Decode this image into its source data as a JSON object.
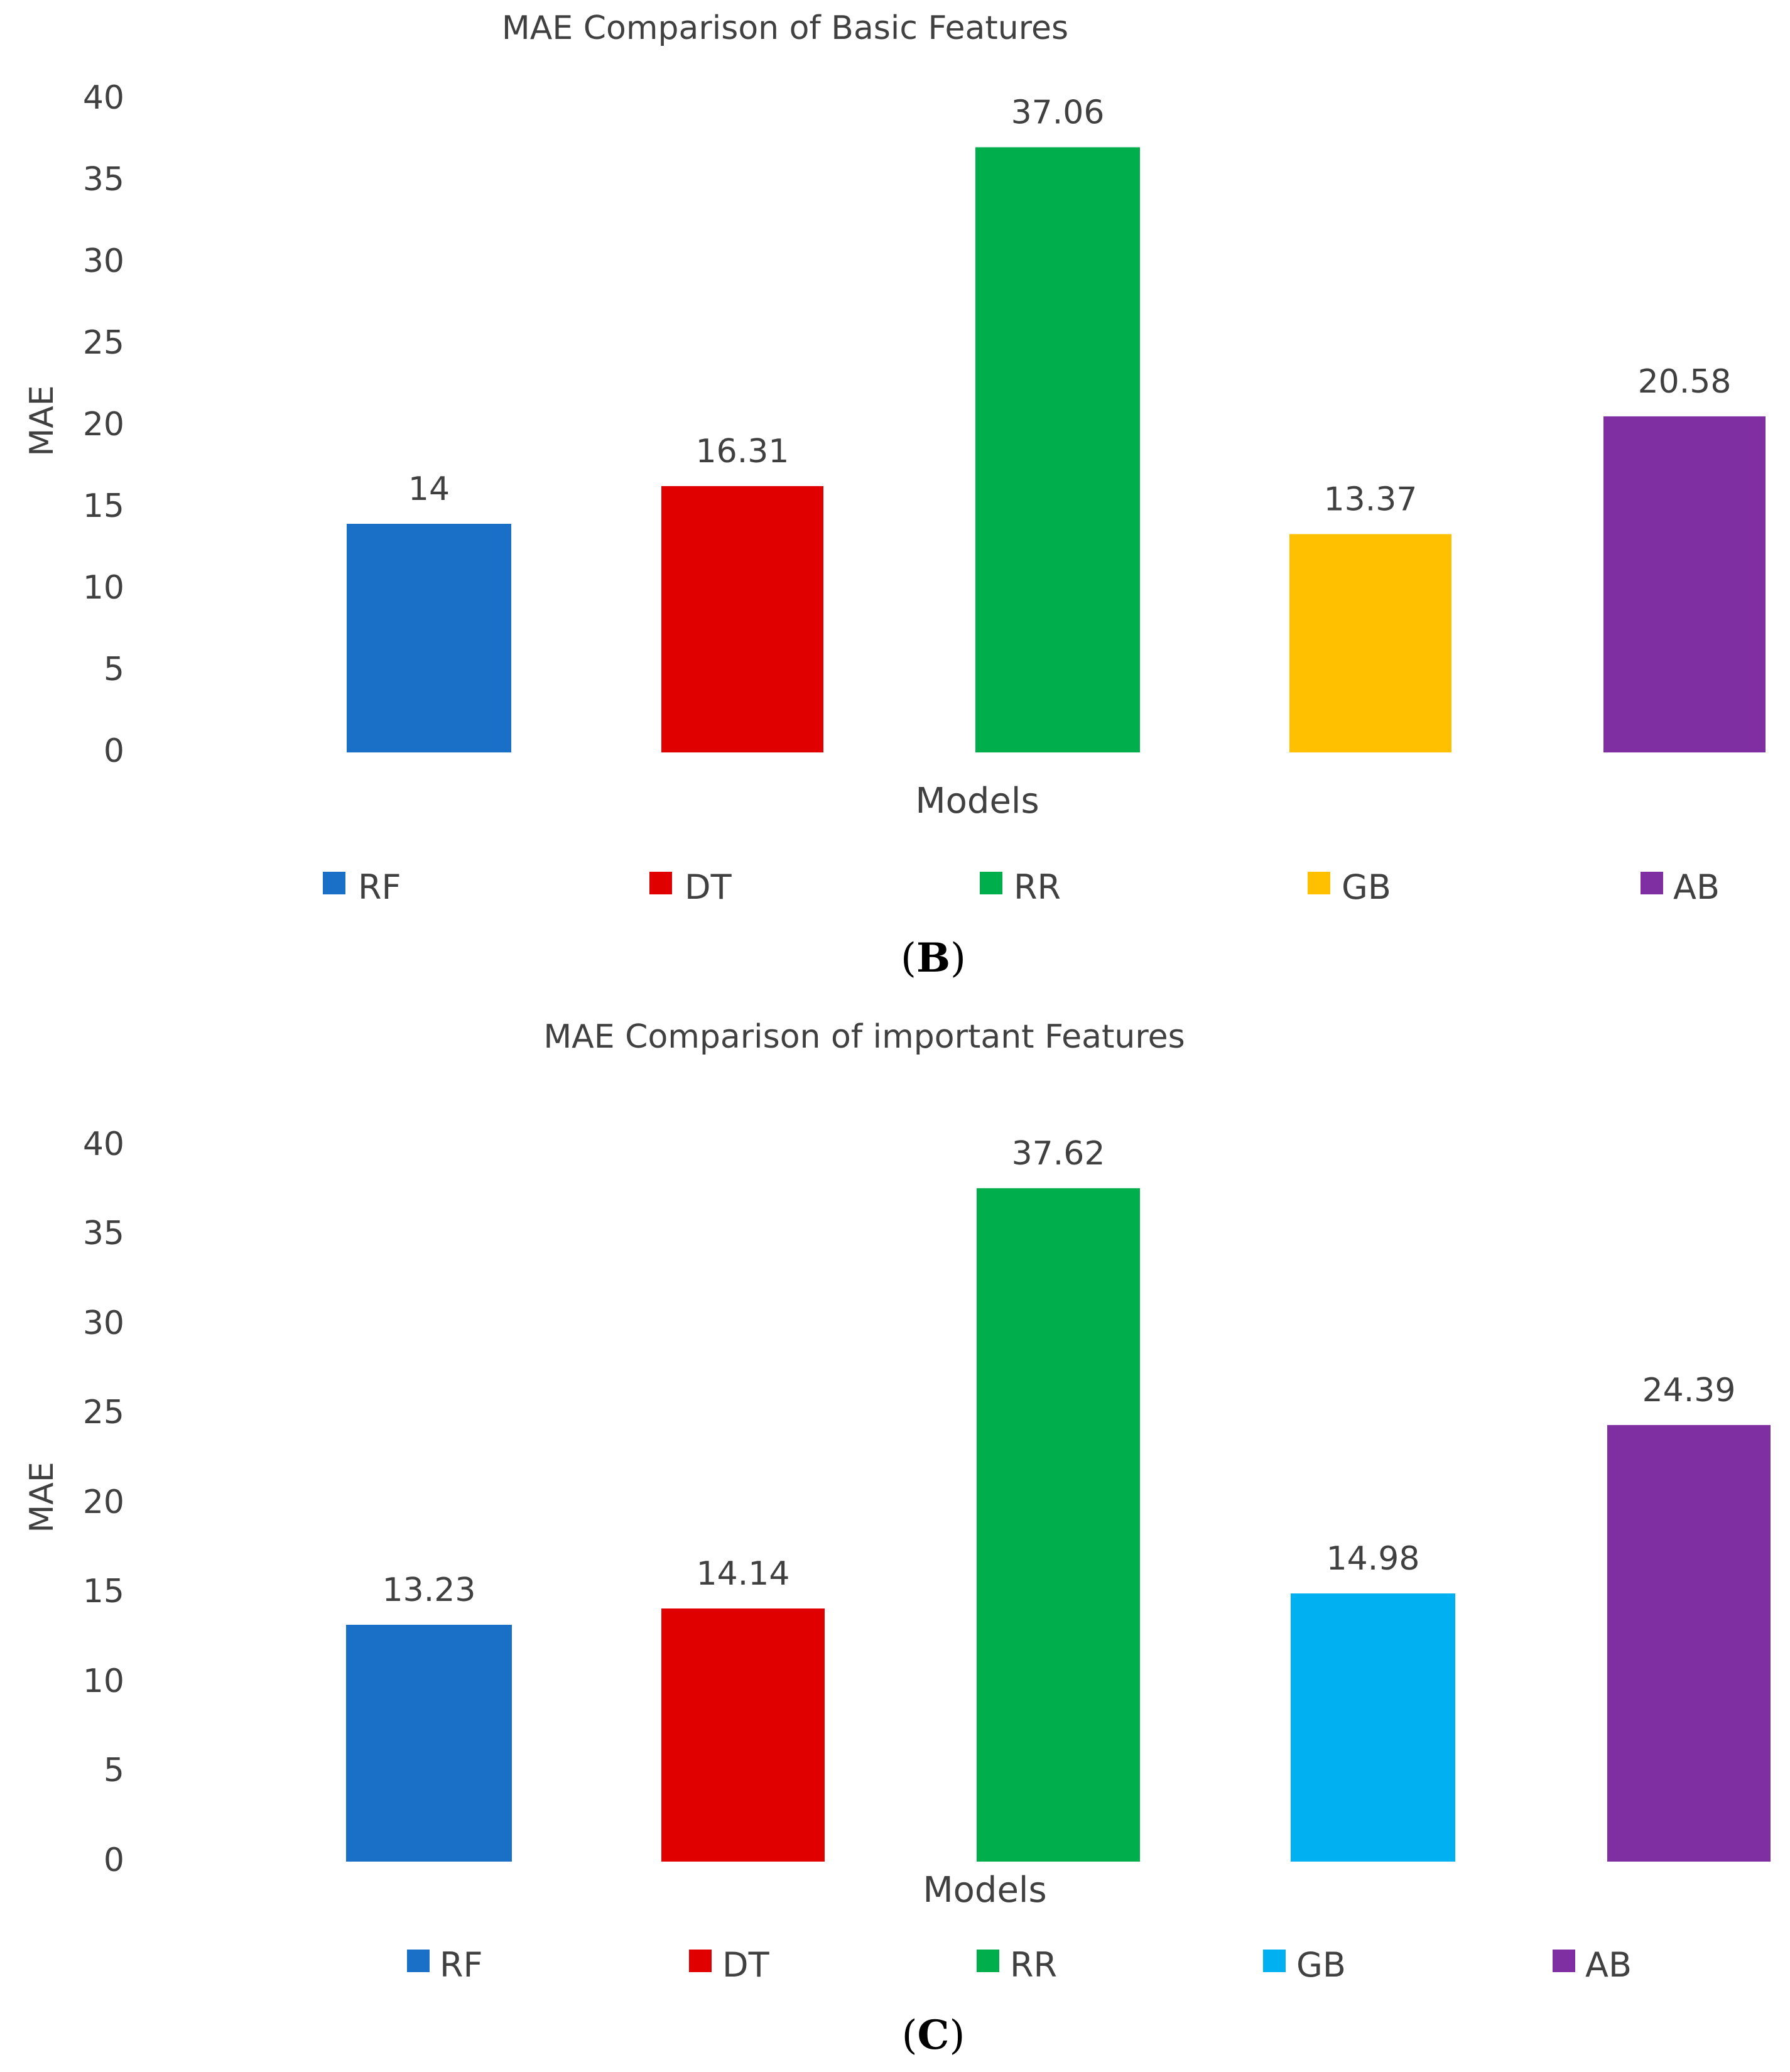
{
  "chart_data": [
    {
      "type": "bar",
      "title": "MAE Comparison of Basic Features",
      "xlabel": "Models",
      "ylabel": "MAE",
      "ylim": [
        0,
        40
      ],
      "yticks": [
        0,
        5,
        10,
        15,
        20,
        25,
        30,
        35,
        40
      ],
      "categories": [
        "RF",
        "DT",
        "RR",
        "GB",
        "AB"
      ],
      "values": [
        14,
        16.31,
        37.06,
        13.37,
        20.58
      ],
      "data_labels": [
        "14",
        "16.31",
        "37.06",
        "13.37",
        "20.58"
      ],
      "colors": [
        "#1a70c7",
        "#e00000",
        "#00ae4b",
        "#ffc000",
        "#7f2fa1"
      ],
      "legend": [
        "RF",
        "DT",
        "RR",
        "GB",
        "AB"
      ],
      "legend_position": "bottom",
      "grid": false,
      "panel": {
        "open": "(",
        "letter": "B",
        "close": ")"
      }
    },
    {
      "type": "bar",
      "title": "MAE Comparison of important Features",
      "xlabel": "Models",
      "ylabel": "MAE",
      "ylim": [
        0,
        40
      ],
      "yticks": [
        0,
        5,
        10,
        15,
        20,
        25,
        30,
        35,
        40
      ],
      "categories": [
        "RF",
        "DT",
        "RR",
        "GB",
        "AB"
      ],
      "values": [
        13.23,
        14.14,
        37.62,
        14.98,
        24.39
      ],
      "data_labels": [
        "13.23",
        "14.14",
        "37.62",
        "14.98",
        "24.39"
      ],
      "colors": [
        "#1a70c7",
        "#e00000",
        "#00ae4b",
        "#00b0f0",
        "#7f2fa1"
      ],
      "legend": [
        "RF",
        "DT",
        "RR",
        "GB",
        "AB"
      ],
      "legend_position": "bottom",
      "grid": false,
      "panel": {
        "open": "(",
        "letter": "C",
        "close": ")"
      }
    }
  ]
}
